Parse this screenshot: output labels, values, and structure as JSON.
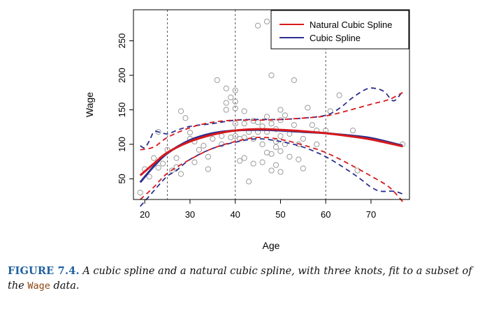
{
  "chart_data": {
    "type": "line",
    "xlabel": "Age",
    "ylabel": "Wage",
    "xlim": [
      17.5,
      78.5
    ],
    "ylim": [
      20,
      295
    ],
    "x_ticks": [
      20,
      30,
      40,
      50,
      60,
      70
    ],
    "y_ticks": [
      50,
      100,
      150,
      200,
      250
    ],
    "knots": [
      25,
      40,
      60
    ],
    "legend_position": "top-right",
    "series": [
      {
        "name": "Natural Cubic Spline",
        "color": "#d7191c",
        "fit": [
          [
            19,
            55
          ],
          [
            22,
            72
          ],
          [
            25,
            88
          ],
          [
            30,
            104
          ],
          [
            35,
            114
          ],
          [
            40,
            120
          ],
          [
            45,
            122
          ],
          [
            50,
            121
          ],
          [
            55,
            119
          ],
          [
            60,
            116
          ],
          [
            65,
            112
          ],
          [
            70,
            107
          ],
          [
            77,
            97
          ]
        ],
        "lower": [
          [
            19,
            20
          ],
          [
            22,
            38
          ],
          [
            25,
            58
          ],
          [
            30,
            78
          ],
          [
            35,
            94
          ],
          [
            40,
            104
          ],
          [
            45,
            110
          ],
          [
            50,
            107
          ],
          [
            55,
            99
          ],
          [
            60,
            88
          ],
          [
            65,
            72
          ],
          [
            70,
            54
          ],
          [
            74,
            38
          ],
          [
            77,
            17
          ]
        ],
        "upper": [
          [
            19,
            92
          ],
          [
            22,
            96
          ],
          [
            25,
            110
          ],
          [
            30,
            124
          ],
          [
            35,
            132
          ],
          [
            40,
            135
          ],
          [
            45,
            135
          ],
          [
            50,
            136
          ],
          [
            55,
            138
          ],
          [
            60,
            141
          ],
          [
            65,
            149
          ],
          [
            70,
            158
          ],
          [
            74,
            165
          ],
          [
            77,
            175
          ]
        ]
      },
      {
        "name": "Cubic Spline",
        "color": "#2b2f8f",
        "fit": [
          [
            19,
            45
          ],
          [
            22,
            68
          ],
          [
            25,
            87
          ],
          [
            30,
            106
          ],
          [
            35,
            116
          ],
          [
            40,
            120
          ],
          [
            45,
            121
          ],
          [
            50,
            120
          ],
          [
            55,
            118
          ],
          [
            60,
            116
          ],
          [
            65,
            113
          ],
          [
            70,
            109
          ],
          [
            77,
            98
          ]
        ],
        "lower": [
          [
            19,
            10
          ],
          [
            21,
            25
          ],
          [
            23,
            40
          ],
          [
            25,
            54
          ],
          [
            27,
            62
          ],
          [
            30,
            78
          ],
          [
            35,
            94
          ],
          [
            40,
            103
          ],
          [
            45,
            108
          ],
          [
            50,
            104
          ],
          [
            55,
            96
          ],
          [
            60,
            82
          ],
          [
            65,
            62
          ],
          [
            68,
            48
          ],
          [
            70,
            38
          ],
          [
            72,
            32
          ],
          [
            75,
            32
          ],
          [
            77,
            28
          ]
        ],
        "upper": [
          [
            19,
            98
          ],
          [
            20,
            95
          ],
          [
            21,
            105
          ],
          [
            22,
            118
          ],
          [
            23,
            118
          ],
          [
            25,
            115
          ],
          [
            27,
            120
          ],
          [
            30,
            126
          ],
          [
            35,
            130
          ],
          [
            40,
            135
          ],
          [
            45,
            136
          ],
          [
            50,
            136
          ],
          [
            55,
            138
          ],
          [
            60,
            142
          ],
          [
            63,
            152
          ],
          [
            66,
            168
          ],
          [
            69,
            180
          ],
          [
            71,
            181
          ],
          [
            73,
            176
          ],
          [
            75,
            163
          ],
          [
            77,
            177
          ]
        ]
      }
    ],
    "points": [
      [
        19,
        30
      ],
      [
        20,
        64
      ],
      [
        21,
        53
      ],
      [
        22,
        80
      ],
      [
        23,
        118
      ],
      [
        23,
        66
      ],
      [
        24,
        72
      ],
      [
        25,
        92
      ],
      [
        26,
        62
      ],
      [
        27,
        67
      ],
      [
        27,
        80
      ],
      [
        28,
        57
      ],
      [
        28,
        148
      ],
      [
        29,
        138
      ],
      [
        30,
        117
      ],
      [
        30,
        108
      ],
      [
        31,
        104
      ],
      [
        31,
        74
      ],
      [
        32,
        92
      ],
      [
        33,
        98
      ],
      [
        34,
        82
      ],
      [
        34,
        64
      ],
      [
        35,
        108
      ],
      [
        36,
        193
      ],
      [
        37,
        100
      ],
      [
        37,
        112
      ],
      [
        38,
        181
      ],
      [
        38,
        160
      ],
      [
        38,
        150
      ],
      [
        39,
        168
      ],
      [
        39,
        110
      ],
      [
        40,
        178
      ],
      [
        40,
        162
      ],
      [
        40,
        152
      ],
      [
        40,
        130
      ],
      [
        40,
        112
      ],
      [
        41,
        108
      ],
      [
        41,
        76
      ],
      [
        42,
        148
      ],
      [
        42,
        130
      ],
      [
        42,
        110
      ],
      [
        42,
        80
      ],
      [
        43,
        46
      ],
      [
        43,
        118
      ],
      [
        44,
        134
      ],
      [
        44,
        108
      ],
      [
        44,
        72
      ],
      [
        45,
        272
      ],
      [
        45,
        132
      ],
      [
        45,
        118
      ],
      [
        46,
        126
      ],
      [
        46,
        100
      ],
      [
        46,
        74
      ],
      [
        47,
        140
      ],
      [
        47,
        118
      ],
      [
        47,
        88
      ],
      [
        47,
        278
      ],
      [
        48,
        200
      ],
      [
        48,
        130
      ],
      [
        48,
        86
      ],
      [
        48,
        62
      ],
      [
        49,
        122
      ],
      [
        49,
        104
      ],
      [
        49,
        96
      ],
      [
        49,
        70
      ],
      [
        50,
        150
      ],
      [
        50,
        135
      ],
      [
        50,
        112
      ],
      [
        50,
        90
      ],
      [
        50,
        60
      ],
      [
        51,
        282
      ],
      [
        51,
        142
      ],
      [
        51,
        100
      ],
      [
        52,
        115
      ],
      [
        52,
        82
      ],
      [
        53,
        193
      ],
      [
        53,
        128
      ],
      [
        54,
        100
      ],
      [
        54,
        78
      ],
      [
        55,
        108
      ],
      [
        55,
        65
      ],
      [
        56,
        153
      ],
      [
        57,
        128
      ],
      [
        58,
        120
      ],
      [
        58,
        100
      ],
      [
        60,
        120
      ],
      [
        61,
        148
      ],
      [
        63,
        171
      ],
      [
        66,
        120
      ],
      [
        67,
        62
      ],
      [
        77,
        100
      ]
    ]
  }
}
